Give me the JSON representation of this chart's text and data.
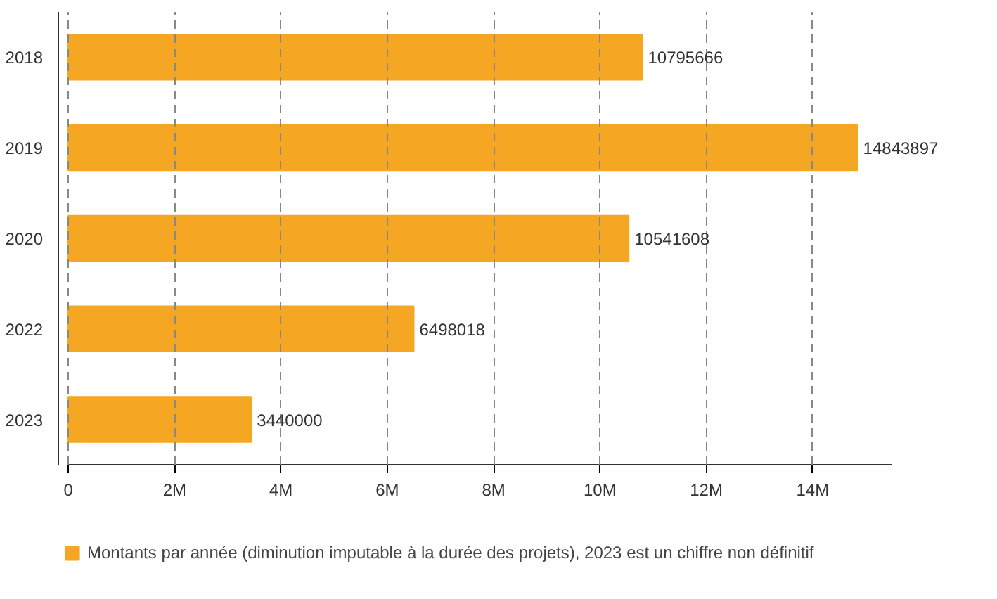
{
  "chart_data": {
    "type": "bar",
    "orientation": "horizontal",
    "categories": [
      "2018",
      "2019",
      "2020",
      "2022",
      "2023"
    ],
    "series": [
      {
        "name": "Montants par année (diminution imputable à la durée des projets), 2023 est un chiffre non définitif",
        "color": "#f5a623",
        "values": [
          10795666,
          14843897,
          10541608,
          6498018,
          3440000
        ]
      }
    ],
    "xlim": [
      0,
      15500000
    ],
    "xticks": [
      0,
      {
        "value": 2000000,
        "label": "2M"
      },
      {
        "value": 4000000,
        "label": "4M"
      },
      {
        "value": 6000000,
        "label": "6M"
      },
      {
        "value": 8000000,
        "label": "8M"
      },
      {
        "value": 10000000,
        "label": "10M"
      },
      {
        "value": 12000000,
        "label": "12M"
      },
      {
        "value": 14000000,
        "label": "14M"
      }
    ],
    "grid": "x",
    "legend": "bottom",
    "data_labels": true
  }
}
